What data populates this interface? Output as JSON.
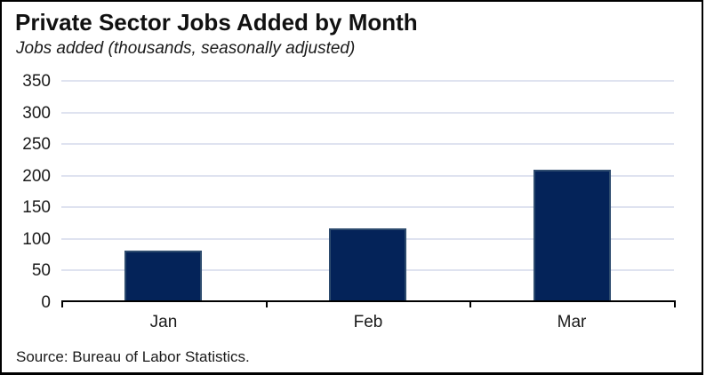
{
  "header": {
    "title": "Private Sector Jobs Added by Month",
    "subtitle": "Jobs added (thousands, seasonally adjusted)"
  },
  "footer": {
    "source": "Source: Bureau of Labor Statistics."
  },
  "colors": {
    "bar_fill": "#042359",
    "bar_border": "#2d4b6e",
    "gridline": "#dfe3f0",
    "axis": "#000000",
    "text": "#1a1a1a"
  },
  "chart_data": {
    "type": "bar",
    "title": "Private Sector Jobs Added by Month",
    "subtitle": "Jobs added (thousands, seasonally adjusted)",
    "categories": [
      "Jan",
      "Feb",
      "Mar"
    ],
    "values": [
      81,
      116,
      209
    ],
    "xlabel": "",
    "ylabel": "Jobs added (thousands, seasonally adjusted)",
    "ylim": [
      0,
      350
    ],
    "ytick_step": 50,
    "yticks": [
      0,
      50,
      100,
      150,
      200,
      250,
      300,
      350
    ],
    "grid": true,
    "legend": false,
    "source": "Source: Bureau of Labor Statistics."
  }
}
